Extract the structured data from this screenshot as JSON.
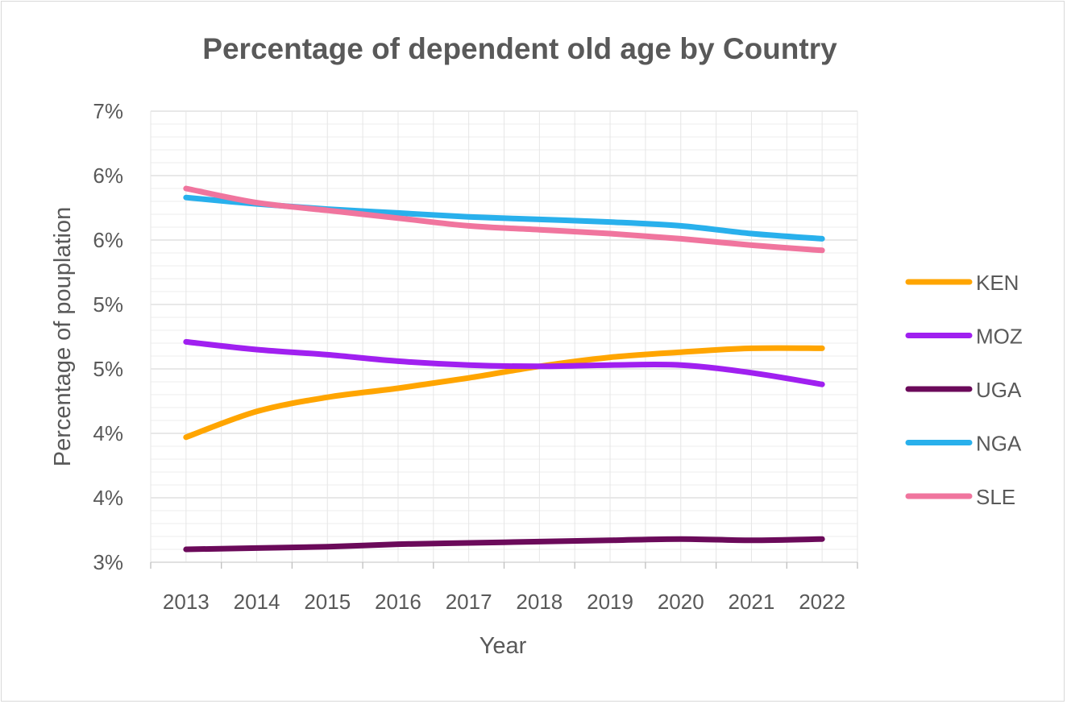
{
  "chart_data": {
    "type": "line",
    "title": "Percentage of  dependent old age by Country",
    "xlabel": "Year",
    "ylabel": "Percentage of pouplation",
    "categories": [
      "2013",
      "2014",
      "2015",
      "2016",
      "2017",
      "2018",
      "2019",
      "2020",
      "2021",
      "2022"
    ],
    "y_tick_labels": [
      "3%",
      "4%",
      "4%",
      "5%",
      "5%",
      "6%",
      "6%",
      "7%"
    ],
    "ylim": [
      3.0,
      6.5
    ],
    "grid": true,
    "legend_position": "right",
    "series": [
      {
        "name": "KEN",
        "color": "#FFA500",
        "values": [
          3.97,
          4.17,
          4.28,
          4.35,
          4.43,
          4.52,
          4.59,
          4.63,
          4.66,
          4.66
        ]
      },
      {
        "name": "MOZ",
        "color": "#A020F0",
        "values": [
          4.71,
          4.65,
          4.61,
          4.56,
          4.53,
          4.52,
          4.53,
          4.53,
          4.47,
          4.38
        ]
      },
      {
        "name": "UGA",
        "color": "#6B0A5A",
        "values": [
          3.1,
          3.11,
          3.12,
          3.14,
          3.15,
          3.16,
          3.17,
          3.18,
          3.17,
          3.18
        ]
      },
      {
        "name": "NGA",
        "color": "#29B0EC",
        "values": [
          5.83,
          5.78,
          5.74,
          5.71,
          5.68,
          5.66,
          5.64,
          5.61,
          5.55,
          5.51
        ]
      },
      {
        "name": "SLE",
        "color": "#F0759E",
        "values": [
          5.9,
          5.79,
          5.73,
          5.67,
          5.61,
          5.58,
          5.55,
          5.51,
          5.46,
          5.42
        ]
      }
    ]
  }
}
